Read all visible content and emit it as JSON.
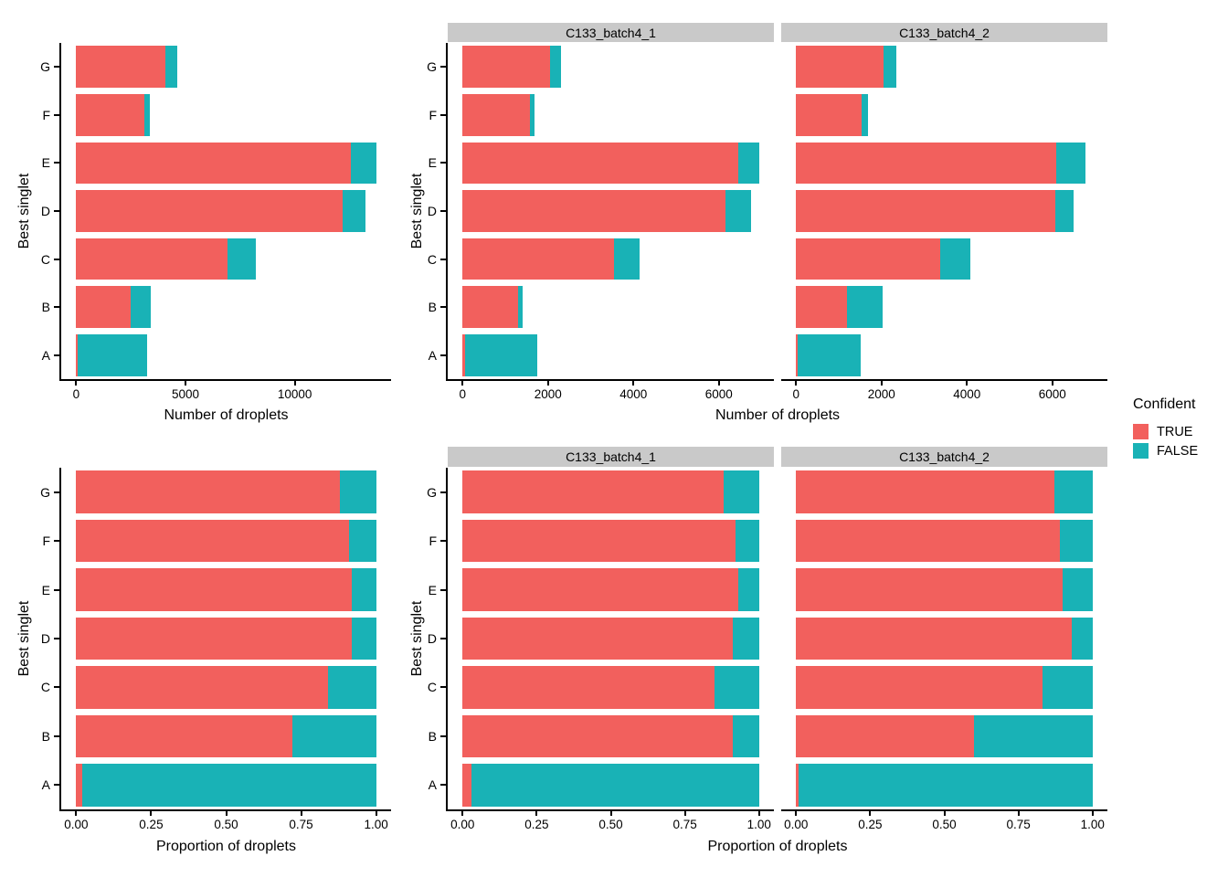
{
  "figure": {
    "legend": {
      "title": "Confident",
      "items": [
        {
          "label": "TRUE",
          "color": "#F2605D"
        },
        {
          "label": "FALSE",
          "color": "#19B2B6"
        }
      ]
    },
    "colors": {
      "TRUE": "#F2605D",
      "FALSE": "#19B2B6",
      "strip_bg": "#C9C9C9",
      "axis": "#000000"
    }
  },
  "chart_data": [
    {
      "id": "counts_overall",
      "type": "bar",
      "orientation": "horizontal",
      "stacked": true,
      "xlabel": "Number of droplets",
      "ylabel": "Best singlet",
      "categories": [
        "A",
        "B",
        "C",
        "D",
        "E",
        "F",
        "G"
      ],
      "x_ticks": [
        0,
        5000,
        10000
      ],
      "x_tick_labels": [
        "0",
        "5000",
        "10000"
      ],
      "x_data_max": 13720,
      "legend_title": "Confident",
      "facets": [
        {
          "label": null,
          "series": [
            {
              "name": "TRUE",
              "values": [
                80,
                2490,
                6920,
                12210,
                12550,
                3100,
                4100
              ]
            },
            {
              "name": "FALSE",
              "values": [
                3170,
                940,
                1300,
                1040,
                1170,
                270,
                540
              ]
            }
          ]
        }
      ]
    },
    {
      "id": "counts_by_sample",
      "type": "bar",
      "orientation": "horizontal",
      "stacked": true,
      "xlabel": "Number of droplets",
      "ylabel": "Best singlet",
      "categories": [
        "A",
        "B",
        "C",
        "D",
        "E",
        "F",
        "G"
      ],
      "x_ticks": [
        0,
        2000,
        4000,
        6000
      ],
      "x_tick_labels": [
        "0",
        "2000",
        "4000",
        "6000"
      ],
      "x_data_max": 6940,
      "legend_title": "Confident",
      "facets": [
        {
          "label": "C133_batch4_1",
          "series": [
            {
              "name": "TRUE",
              "values": [
                50,
                1290,
                3540,
                6150,
                6450,
                1570,
                2050
              ]
            },
            {
              "name": "FALSE",
              "values": [
                1690,
                120,
                600,
                600,
                490,
                110,
                250
              ]
            }
          ]
        },
        {
          "label": "C133_batch4_2",
          "series": [
            {
              "name": "TRUE",
              "values": [
                30,
                1200,
                3380,
                6060,
                6100,
                1530,
                2050
              ]
            },
            {
              "name": "FALSE",
              "values": [
                1480,
                820,
                700,
                440,
                680,
                160,
                290
              ]
            }
          ]
        }
      ]
    },
    {
      "id": "prop_overall",
      "type": "bar",
      "orientation": "horizontal",
      "stacked": true,
      "xlabel": "Proportion of droplets",
      "ylabel": "Best singlet",
      "categories": [
        "A",
        "B",
        "C",
        "D",
        "E",
        "F",
        "G"
      ],
      "x_ticks": [
        0,
        0.25,
        0.5,
        0.75,
        1.0
      ],
      "x_tick_labels": [
        "0.00",
        "0.25",
        "0.50",
        "0.75",
        "1.00"
      ],
      "x_data_max": 1.0,
      "legend_title": "Confident",
      "facets": [
        {
          "label": null,
          "series": [
            {
              "name": "TRUE",
              "values": [
                0.02,
                0.72,
                0.84,
                0.92,
                0.92,
                0.91,
                0.88
              ]
            },
            {
              "name": "FALSE",
              "values": [
                0.98,
                0.28,
                0.16,
                0.08,
                0.08,
                0.09,
                0.12
              ]
            }
          ]
        }
      ]
    },
    {
      "id": "prop_by_sample",
      "type": "bar",
      "orientation": "horizontal",
      "stacked": true,
      "xlabel": "Proportion of droplets",
      "ylabel": "Best singlet",
      "categories": [
        "A",
        "B",
        "C",
        "D",
        "E",
        "F",
        "G"
      ],
      "x_ticks": [
        0,
        0.25,
        0.5,
        0.75,
        1.0
      ],
      "x_tick_labels": [
        "0.00",
        "0.25",
        "0.50",
        "0.75",
        "1.00"
      ],
      "x_data_max": 1.0,
      "legend_title": "Confident",
      "facets": [
        {
          "label": "C133_batch4_1",
          "series": [
            {
              "name": "TRUE",
              "values": [
                0.03,
                0.91,
                0.85,
                0.91,
                0.93,
                0.92,
                0.88
              ]
            },
            {
              "name": "FALSE",
              "values": [
                0.97,
                0.09,
                0.15,
                0.09,
                0.07,
                0.08,
                0.12
              ]
            }
          ]
        },
        {
          "label": "C133_batch4_2",
          "series": [
            {
              "name": "TRUE",
              "values": [
                0.01,
                0.6,
                0.83,
                0.93,
                0.9,
                0.89,
                0.87
              ]
            },
            {
              "name": "FALSE",
              "values": [
                0.99,
                0.4,
                0.17,
                0.07,
                0.1,
                0.11,
                0.13
              ]
            }
          ]
        }
      ]
    }
  ]
}
